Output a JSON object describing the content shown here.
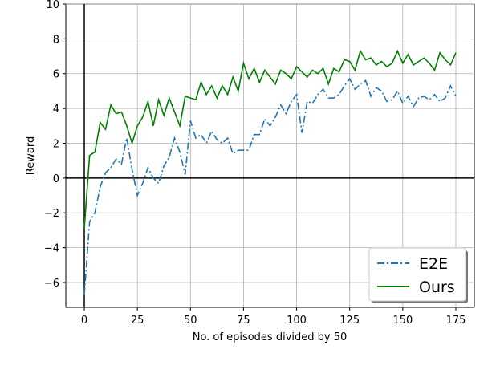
{
  "chart_data": {
    "type": "line",
    "xlabel": "No. of episodes divided by 50",
    "ylabel": "Reward",
    "x": [
      0,
      2.5,
      5,
      7.5,
      10,
      12.5,
      15,
      17.5,
      20,
      22.5,
      25,
      27.5,
      30,
      32.5,
      35,
      37.5,
      40,
      42.5,
      45,
      47.5,
      50,
      52.5,
      55,
      57.5,
      60,
      62.5,
      65,
      67.5,
      70,
      72.5,
      75,
      77.5,
      80,
      82.5,
      85,
      87.5,
      90,
      92.5,
      95,
      97.5,
      100,
      102.5,
      105,
      107.5,
      110,
      112.5,
      115,
      117.5,
      120,
      122.5,
      125,
      127.5,
      130,
      132.5,
      135,
      137.5,
      140,
      142.5,
      145,
      147.5,
      150,
      152.5,
      155,
      157.5,
      160,
      162.5,
      165,
      167.5,
      170,
      172.5,
      175
    ],
    "series": [
      {
        "name": "E2E",
        "color": "#1f77b4",
        "dash": "dashdot",
        "values": [
          -6.7,
          -2.5,
          -2.0,
          -0.5,
          0.3,
          0.6,
          1.1,
          0.8,
          2.3,
          0.5,
          -1.0,
          -0.3,
          0.6,
          0.0,
          -0.3,
          0.7,
          1.2,
          2.3,
          1.5,
          0.2,
          3.3,
          2.3,
          2.5,
          2.0,
          2.7,
          2.2,
          2.0,
          2.3,
          1.4,
          1.6,
          1.6,
          1.6,
          2.5,
          2.5,
          3.4,
          3.0,
          3.5,
          4.2,
          3.7,
          4.4,
          4.8,
          2.6,
          4.4,
          4.3,
          4.8,
          5.1,
          4.6,
          4.6,
          4.8,
          5.3,
          5.7,
          5.1,
          5.4,
          5.6,
          4.7,
          5.2,
          5.0,
          4.4,
          4.5,
          5.0,
          4.3,
          4.7,
          4.1,
          4.6,
          4.7,
          4.5,
          4.8,
          4.4,
          4.6,
          5.3,
          4.7
        ]
      },
      {
        "name": "Ours",
        "color": "#008000",
        "dash": "solid",
        "values": [
          -2.9,
          1.3,
          1.5,
          3.2,
          2.8,
          4.2,
          3.7,
          3.8,
          3.0,
          2.0,
          3.0,
          3.5,
          4.4,
          3.0,
          4.5,
          3.6,
          4.6,
          3.8,
          3.0,
          4.7,
          4.6,
          4.5,
          5.5,
          4.8,
          5.3,
          4.6,
          5.3,
          4.8,
          5.8,
          5.0,
          6.6,
          5.7,
          6.3,
          5.5,
          6.2,
          5.8,
          5.4,
          6.2,
          6.0,
          5.7,
          6.4,
          6.1,
          5.8,
          6.2,
          6.0,
          6.3,
          5.4,
          6.3,
          6.1,
          6.8,
          6.7,
          6.2,
          7.3,
          6.8,
          6.9,
          6.5,
          6.7,
          6.4,
          6.6,
          7.3,
          6.6,
          7.1,
          6.5,
          6.7,
          6.9,
          6.6,
          6.2,
          7.2,
          6.8,
          6.5,
          7.2
        ]
      }
    ],
    "xlim": [
      -8.7,
      183.7
    ],
    "ylim": [
      -7.43,
      10
    ],
    "xticks": [
      0,
      25,
      50,
      75,
      100,
      125,
      150,
      175
    ],
    "yticks": [
      {
        "value": -6,
        "label": "−6"
      },
      {
        "value": -4,
        "label": "−4"
      },
      {
        "value": -2,
        "label": "−2"
      },
      0,
      2,
      4,
      6,
      8,
      10
    ],
    "grid": true,
    "legend": "lower right"
  }
}
